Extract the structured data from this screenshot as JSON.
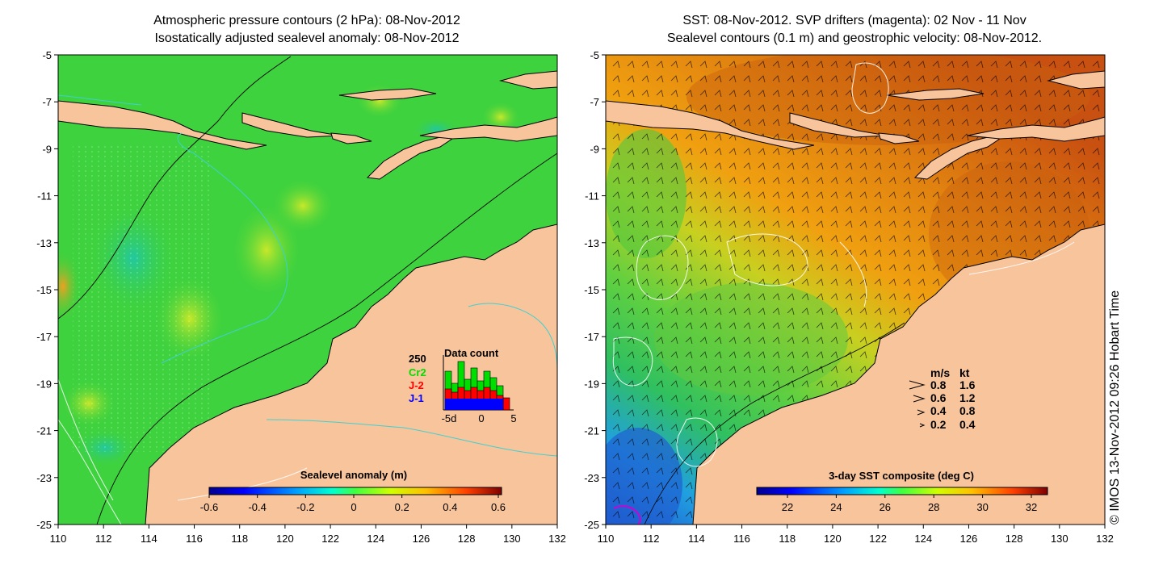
{
  "left_panel": {
    "title_line1": "Atmospheric pressure contours (2 hPa): 08-Nov-2012",
    "title_line2": "Isostatically adjusted sealevel anomaly: 08-Nov-2012",
    "x_ticks": [
      "110",
      "112",
      "114",
      "116",
      "118",
      "120",
      "122",
      "124",
      "126",
      "128",
      "130",
      "132"
    ],
    "y_ticks": [
      "-5",
      "-7",
      "-9",
      "-11",
      "-13",
      "-15",
      "-17",
      "-19",
      "-21",
      "-23",
      "-25"
    ],
    "colorbar": {
      "title": "Sealevel anomaly (m)",
      "ticks": [
        "-0.6",
        "-0.4",
        "-0.2",
        "0",
        "0.2",
        "0.4",
        "0.6"
      ]
    },
    "data_count": {
      "title": "Data count",
      "max_label": "250",
      "series": [
        {
          "name": "Cr2",
          "color": "#00dd00"
        },
        {
          "name": "J-2",
          "color": "#ff0000"
        },
        {
          "name": "J-1",
          "color": "#0000ff"
        }
      ],
      "x_ticks": [
        "-5d",
        "0",
        "5"
      ]
    }
  },
  "right_panel": {
    "title_line1": "SST: 08-Nov-2012. SVP drifters (magenta): 02 Nov - 11 Nov",
    "title_line2": "Sealevel contours (0.1 m) and geostrophic velocity: 08-Nov-2012.",
    "x_ticks": [
      "110",
      "112",
      "114",
      "116",
      "118",
      "120",
      "122",
      "124",
      "126",
      "128",
      "130",
      "132"
    ],
    "y_ticks": [
      "-5",
      "-7",
      "-9",
      "-11",
      "-13",
      "-15",
      "-17",
      "-19",
      "-21",
      "-23",
      "-25"
    ],
    "colorbar": {
      "title": "3-day SST composite (deg C)",
      "ticks": [
        "22",
        "24",
        "26",
        "28",
        "30",
        "32"
      ]
    },
    "velocity_legend": {
      "header_ms": "m/s",
      "header_kt": "kt",
      "rows": [
        {
          "ms": "0.8",
          "kt": "1.6"
        },
        {
          "ms": "0.6",
          "kt": "1.2"
        },
        {
          "ms": "0.4",
          "kt": "0.8"
        },
        {
          "ms": "0.2",
          "kt": "0.4"
        }
      ]
    }
  },
  "copyright": "© IMOS 13-Nov-2012 09:26 Hobart Time",
  "colors": {
    "land": "#f8c49c",
    "ocean_green": "#3ed23e",
    "sst_orange": "#e88a10",
    "contour_cyan": "#40d0d0"
  }
}
